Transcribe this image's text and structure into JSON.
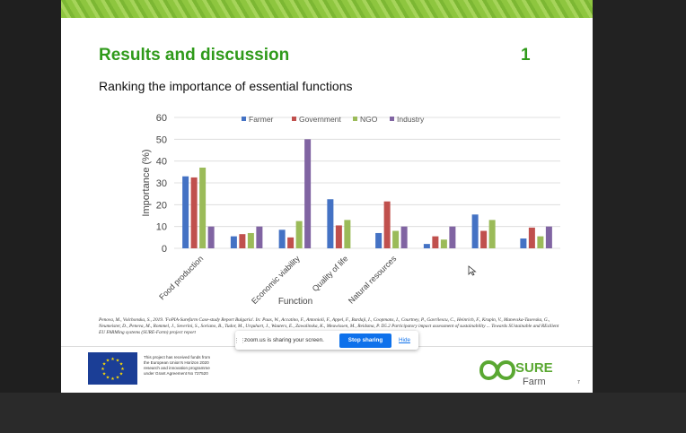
{
  "slide": {
    "title": "Results and discussion",
    "number": "1",
    "subtitle": "Ranking the importance of essential functions",
    "references": "Penova, M., Volchonska, S., 2019. 'FoPIA-Surefarm Case-study Report Bulgaria'. In: Paas, W., Accatino, F., Antonioli, F., Appel, F., Bardaji, I., Coopmans, I., Courtney, P., Gavrilescu, C., Heinrich, F., Krupin, V., Manevska-Tasevska, G., Neumeister, D., Peneva, M., Rommel, J., Severini, S., Soriano, B., Tudor, M., Urquhart, J., Wauters, E., Zawalinska, K., Meuwissen, M., Reidsma, P. D5.2 Participatory impact assessment of sustainability ... Towards SUstainable and REsilient EU FARMing systems (SURE-Farm) project report",
    "eu_text": "This project has received funds from the European Union's Horizon 2020 research and innovation programme under Grant Agreement No 727520",
    "logo_word_1": "SURE",
    "logo_word_2": "Farm",
    "page_corner": "7"
  },
  "zoom_bar": {
    "message": "zoom.us is sharing your screen.",
    "stop_label": "Stop sharing",
    "hide_label": "Hide"
  },
  "colors": {
    "farmer": "#4472c4",
    "government": "#c0504d",
    "ngo": "#9bbb59",
    "industry": "#8064a2",
    "title_green": "#2f9a1a"
  },
  "chart_data": {
    "type": "bar",
    "xlabel": "Function",
    "ylabel": "Importance (%)",
    "ylim": [
      0,
      60
    ],
    "yticks": [
      0,
      10,
      20,
      30,
      40,
      50,
      60
    ],
    "grid": true,
    "legend_position": "top",
    "categories": [
      "Food production",
      "",
      "Economic viability",
      "Quality of life",
      "Natural resources",
      "",
      "",
      ""
    ],
    "series": [
      {
        "name": "Farmer",
        "values": [
          33,
          5.5,
          8.5,
          22.5,
          7,
          2,
          15.5,
          4.5
        ]
      },
      {
        "name": "Government",
        "values": [
          32.5,
          6.5,
          5,
          10.5,
          21.5,
          5.5,
          8,
          9.5
        ]
      },
      {
        "name": "NGO",
        "values": [
          37,
          7,
          12.5,
          13,
          8,
          4,
          13,
          5.5
        ]
      },
      {
        "name": "Industry",
        "values": [
          10,
          10,
          50,
          0,
          10,
          10,
          0,
          10
        ]
      }
    ]
  }
}
